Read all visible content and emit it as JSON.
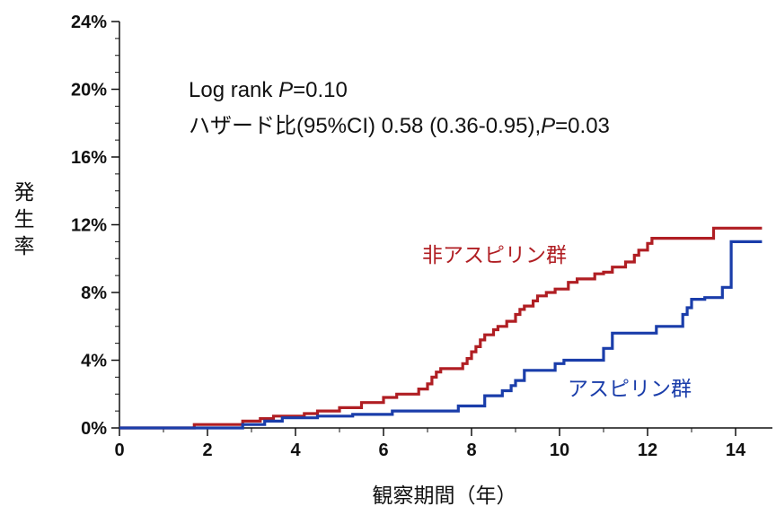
{
  "chart_data": {
    "type": "line",
    "step": true,
    "xlabel": "観察期間（年）",
    "ylabel": "発生率",
    "xlim": [
      0,
      14.8
    ],
    "ylim": [
      0,
      24
    ],
    "xticks": [
      0,
      2,
      4,
      6,
      8,
      10,
      12,
      14
    ],
    "xtick_labels": [
      "0",
      "2",
      "4",
      "6",
      "8",
      "10",
      "12",
      "14"
    ],
    "yticks": [
      0,
      4,
      8,
      12,
      16,
      20,
      24
    ],
    "ytick_labels": [
      "0%",
      "4%",
      "8%",
      "12%",
      "16%",
      "20%",
      "24%"
    ],
    "grid": false,
    "legend": "none",
    "annotations": [
      {
        "parts": [
          {
            "text": "Log rank ",
            "italic": false
          },
          {
            "text": "P",
            "italic": true
          },
          {
            "text": "=0.10",
            "italic": false
          }
        ]
      },
      {
        "parts": [
          {
            "text": "ハザード比(95%CI) 0.58 (0.36-0.95),",
            "italic": false
          },
          {
            "text": "P",
            "italic": true
          },
          {
            "text": "=0.03",
            "italic": false
          }
        ]
      }
    ],
    "series": [
      {
        "name": "非アスピリン群",
        "color": "#b01e23",
        "x": [
          0,
          1.7,
          2.8,
          3.2,
          3.5,
          4.2,
          4.5,
          5,
          5.5,
          6,
          6.3,
          6.8,
          7.0,
          7.1,
          7.2,
          7.3,
          7.8,
          7.9,
          8.0,
          8.1,
          8.2,
          8.3,
          8.5,
          8.6,
          8.8,
          9.0,
          9.1,
          9.2,
          9.4,
          9.5,
          9.7,
          9.9,
          10.2,
          10.4,
          10.8,
          11.0,
          11.2,
          11.5,
          11.7,
          11.8,
          12.0,
          12.1,
          13.5,
          14.6
        ],
        "y": [
          0,
          0.2,
          0.4,
          0.55,
          0.7,
          0.85,
          1.0,
          1.2,
          1.5,
          1.8,
          2.0,
          2.3,
          2.6,
          3.0,
          3.3,
          3.5,
          3.8,
          4.1,
          4.5,
          4.8,
          5.2,
          5.5,
          5.8,
          6.0,
          6.3,
          6.7,
          7.0,
          7.2,
          7.5,
          7.8,
          8.0,
          8.2,
          8.6,
          8.8,
          9.1,
          9.2,
          9.5,
          9.8,
          10.2,
          10.5,
          10.9,
          11.2,
          11.8,
          11.8
        ],
        "label_text": "非アスピリン群"
      },
      {
        "name": "アスピリン群",
        "color": "#1a3daa",
        "x": [
          0,
          2.8,
          3.3,
          3.7,
          4.5,
          5.3,
          6.2,
          7.7,
          8.3,
          8.7,
          8.9,
          9.0,
          9.2,
          9.9,
          10.1,
          11.0,
          11.2,
          12.2,
          12.8,
          12.9,
          13.0,
          13.3,
          13.7,
          13.9,
          14.6
        ],
        "y": [
          0,
          0.2,
          0.4,
          0.6,
          0.7,
          0.8,
          1.0,
          1.3,
          1.9,
          2.2,
          2.5,
          2.8,
          3.4,
          3.8,
          4.0,
          4.7,
          5.6,
          6.0,
          6.7,
          7.1,
          7.6,
          7.7,
          8.3,
          11.0,
          11.0
        ],
        "label_text": "アスピリン群"
      }
    ]
  }
}
